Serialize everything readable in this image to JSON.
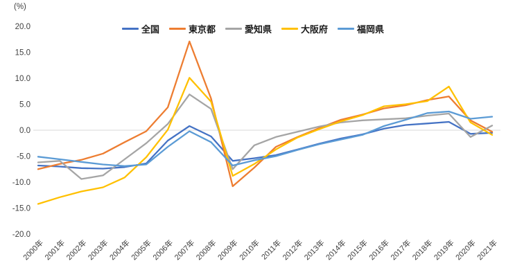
{
  "chart": {
    "background_color": "#ffffff",
    "zero_line_color": "#d9d9d9",
    "axis_text_color": "#404040",
    "legend_text_color": "#1a1a1a"
  },
  "chart_data": {
    "type": "line",
    "title": "",
    "xlabel": "",
    "ylabel": "(%)",
    "ylim": [
      -20.0,
      20.0
    ],
    "ytick_step": 5.0,
    "yticks": [
      "20.0",
      "15.0",
      "10.0",
      "5.0",
      "0.0",
      "-5.0",
      "-10.0",
      "-15.0",
      "-20.0"
    ],
    "grid": "zero-line-only",
    "legend_position": "top-center",
    "categories": [
      "2000年",
      "2001年",
      "2002年",
      "2003年",
      "2004年",
      "2005年",
      "2006年",
      "2007年",
      "2008年",
      "2009年",
      "2010年",
      "2011年",
      "2012年",
      "2013年",
      "2014年",
      "2015年",
      "2016年",
      "2017年",
      "2018年",
      "2019年",
      "2020年",
      "2021年"
    ],
    "series": [
      {
        "name": "全国",
        "color": "#4472C4",
        "values": [
          -6.8,
          -7.0,
          -7.3,
          -7.4,
          -7.1,
          -6.4,
          -2.0,
          0.8,
          -1.2,
          -5.9,
          -5.4,
          -4.8,
          -3.7,
          -2.6,
          -1.6,
          -0.8,
          0.3,
          1.0,
          1.3,
          1.6,
          -0.7,
          -0.5
        ]
      },
      {
        "name": "東京都",
        "color": "#ED7D31",
        "values": [
          -7.5,
          -6.5,
          -5.7,
          -4.5,
          -2.3,
          -0.2,
          4.4,
          17.1,
          6.1,
          -10.8,
          -7.2,
          -3.2,
          -1.3,
          0.4,
          2.0,
          3.0,
          4.2,
          4.8,
          5.8,
          6.5,
          1.9,
          -0.3
        ]
      },
      {
        "name": "愛知県",
        "color": "#A5A5A5",
        "values": [
          -6.2,
          -5.9,
          -9.4,
          -8.7,
          -5.6,
          -2.5,
          1.2,
          6.9,
          4.1,
          -7.5,
          -2.9,
          -1.3,
          -0.3,
          0.7,
          1.5,
          1.9,
          2.1,
          2.3,
          2.8,
          3.2,
          -1.3,
          0.9
        ]
      },
      {
        "name": "大阪府",
        "color": "#FFC000",
        "values": [
          -14.2,
          -12.9,
          -11.8,
          -11.0,
          -9.1,
          -5.2,
          0.1,
          10.1,
          5.5,
          -8.8,
          -6.5,
          -3.7,
          -1.4,
          0.2,
          1.7,
          2.9,
          4.6,
          5.0,
          5.6,
          8.4,
          1.5,
          -0.9
        ]
      },
      {
        "name": "福岡県",
        "color": "#5B9BD5",
        "values": [
          -5.1,
          -5.6,
          -6.1,
          -6.6,
          -6.9,
          -6.6,
          -3.2,
          -0.2,
          -2.3,
          -6.8,
          -5.8,
          -5.0,
          -3.8,
          -2.7,
          -1.8,
          -0.9,
          0.8,
          2.0,
          3.3,
          3.6,
          2.2,
          2.6
        ]
      }
    ]
  }
}
